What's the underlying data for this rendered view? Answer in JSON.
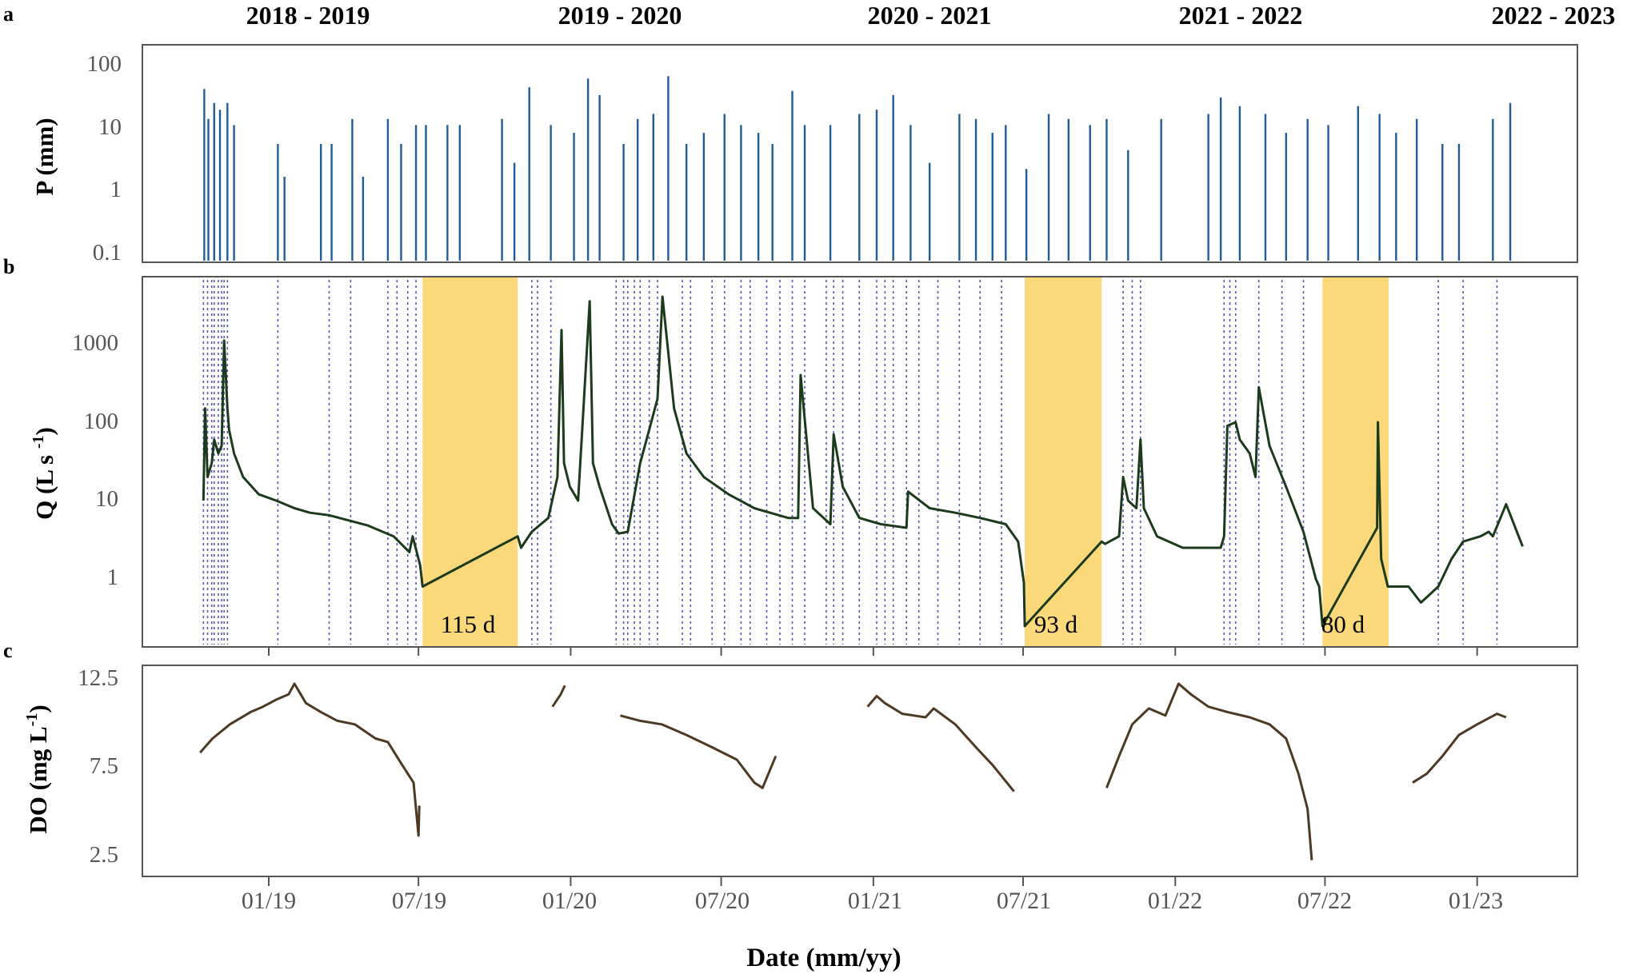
{
  "chart_data": [
    {
      "type": "bar",
      "panel": "a",
      "ylabel": "P (mm)",
      "scale": "log",
      "yticks": [
        "100",
        "10",
        "1",
        "0.1"
      ],
      "ylim": [
        0.07,
        160
      ],
      "seasons": [
        "2018 - 2019",
        "2019 - 2020",
        "2020 - 2021",
        "2021 - 2022",
        "2022 - 2023"
      ],
      "series": [
        {
          "color": "#1f5c99",
          "x": [
            "2018-10-15",
            "2018-10-20",
            "2018-10-27",
            "2018-11-03",
            "2018-11-12",
            "2018-11-20",
            "2019-01-12",
            "2019-01-20",
            "2019-03-05",
            "2019-03-18",
            "2019-04-12",
            "2019-04-25",
            "2019-05-25",
            "2019-06-10",
            "2019-06-28",
            "2019-07-10",
            "2019-08-05",
            "2019-08-20",
            "2019-10-10",
            "2019-10-25",
            "2019-11-12",
            "2019-12-08",
            "2020-01-05",
            "2020-01-22",
            "2020-02-05",
            "2020-03-05",
            "2020-03-22",
            "2020-04-10",
            "2020-04-28",
            "2020-05-20",
            "2020-06-10",
            "2020-07-05",
            "2020-07-25",
            "2020-08-15",
            "2020-09-01",
            "2020-09-25",
            "2020-10-10",
            "2020-11-10",
            "2020-12-15",
            "2021-01-05",
            "2021-01-25",
            "2021-02-15",
            "2021-03-10",
            "2021-04-15",
            "2021-05-05",
            "2021-05-25",
            "2021-06-10",
            "2021-07-05",
            "2021-08-01",
            "2021-08-25",
            "2021-09-20",
            "2021-10-10",
            "2021-11-05",
            "2021-12-15",
            "2022-02-10",
            "2022-02-25",
            "2022-03-20",
            "2022-04-20",
            "2022-05-15",
            "2022-06-10",
            "2022-07-05",
            "2022-08-10",
            "2022-09-05",
            "2022-09-25",
            "2022-10-20",
            "2022-11-20",
            "2022-12-10",
            "2023-01-20",
            "2023-02-10"
          ],
          "values": [
            75,
            25,
            45,
            35,
            45,
            20,
            10,
            3,
            10,
            10,
            25,
            3,
            25,
            10,
            20,
            20,
            20,
            20,
            25,
            5,
            80,
            20,
            15,
            110,
            60,
            10,
            25,
            30,
            120,
            10,
            15,
            30,
            20,
            15,
            10,
            70,
            20,
            20,
            30,
            35,
            60,
            20,
            5,
            30,
            25,
            15,
            20,
            4,
            30,
            25,
            20,
            25,
            8,
            25,
            30,
            55,
            40,
            30,
            15,
            25,
            20,
            40,
            30,
            15,
            25,
            10,
            10,
            25,
            45
          ]
        }
      ]
    },
    {
      "type": "line",
      "panel": "b",
      "ylabel": "Q (L s -1)",
      "ylabel_base": "Q (L s ",
      "ylabel_sup": "-1",
      "ylabel_close": ")",
      "scale": "log",
      "yticks": [
        "1000",
        "100",
        "10",
        "1"
      ],
      "ylim": [
        0.25,
        5000
      ],
      "series": [
        {
          "color": "#1c3a1c",
          "x": [
            "2018-10-14",
            "2018-10-16",
            "2018-10-19",
            "2018-10-24",
            "2018-10-27",
            "2018-11-01",
            "2018-11-05",
            "2018-11-08",
            "2018-11-12",
            "2018-11-14",
            "2018-11-20",
            "2018-12-01",
            "2018-12-20",
            "2019-01-10",
            "2019-02-01",
            "2019-02-20",
            "2019-03-15",
            "2019-04-10",
            "2019-05-01",
            "2019-06-01",
            "2019-06-20",
            "2019-06-24",
            "2019-07-03",
            "2019-07-06",
            "2019-10-29",
            "2019-11-02",
            "2019-11-15",
            "2019-12-05",
            "2019-12-16",
            "2019-12-21",
            "2019-12-24",
            "2019-12-31",
            "2020-01-10",
            "2020-01-24",
            "2020-01-28",
            "2020-02-05",
            "2020-02-20",
            "2020-02-28",
            "2020-03-10",
            "2020-03-25",
            "2020-04-05",
            "2020-04-15",
            "2020-04-21",
            "2020-05-05",
            "2020-05-20",
            "2020-06-10",
            "2020-07-10",
            "2020-08-10",
            "2020-09-20",
            "2020-10-02",
            "2020-10-05",
            "2020-10-20",
            "2020-11-10",
            "2020-11-14",
            "2020-11-25",
            "2020-12-15",
            "2021-01-10",
            "2021-02-10",
            "2021-02-12",
            "2021-03-10",
            "2021-04-10",
            "2021-05-10",
            "2021-06-10",
            "2021-06-25",
            "2021-07-02",
            "2021-07-03",
            "2021-10-04",
            "2021-10-08",
            "2021-10-25",
            "2021-10-30",
            "2021-11-05",
            "2021-11-15",
            "2021-11-20",
            "2021-11-24",
            "2021-12-10",
            "2022-01-10",
            "2022-02-10",
            "2022-02-25",
            "2022-03-01",
            "2022-03-05",
            "2022-03-15",
            "2022-03-20",
            "2022-04-01",
            "2022-04-08",
            "2022-04-12",
            "2022-04-25",
            "2022-05-15",
            "2022-06-05",
            "2022-06-20",
            "2022-06-24",
            "2022-06-28",
            "2022-09-02",
            "2022-09-03",
            "2022-09-07",
            "2022-09-15",
            "2022-10-10",
            "2022-10-25",
            "2022-11-15",
            "2022-12-01",
            "2022-12-15",
            "2023-01-05",
            "2023-01-15",
            "2023-01-20",
            "2023-02-05",
            "2023-02-25"
          ],
          "values": [
            10,
            150,
            20,
            30,
            60,
            40,
            50,
            1100,
            150,
            80,
            40,
            20,
            12,
            10,
            8,
            7,
            6.5,
            5.5,
            4.8,
            3.5,
            2.2,
            3.5,
            1.5,
            0.8,
            3.5,
            2.5,
            4,
            6,
            20,
            1500,
            30,
            15,
            10,
            3500,
            30,
            15,
            5,
            3.8,
            4,
            30,
            80,
            200,
            4000,
            150,
            40,
            20,
            12,
            8,
            6,
            6,
            400,
            8,
            5,
            70,
            15,
            6,
            5,
            4.5,
            13,
            8,
            7,
            6,
            5,
            3,
            0.9,
            0.25,
            3,
            2.8,
            3.5,
            20,
            10,
            8,
            60,
            8,
            3.5,
            2.5,
            2.5,
            2.5,
            3.5,
            90,
            100,
            60,
            40,
            20,
            280,
            50,
            15,
            4,
            1,
            0.8,
            0.25,
            4.5,
            100,
            1.8,
            0.8,
            0.8,
            0.5,
            0.8,
            1.8,
            3,
            3.5,
            4,
            3.5,
            9,
            2.6
          ]
        }
      ],
      "no_flow_periods": [
        {
          "start": "2019-07-06",
          "end": "2019-10-29",
          "label": "115 d"
        },
        {
          "start": "2021-07-03",
          "end": "2021-10-04",
          "label": "93 d"
        },
        {
          "start": "2022-06-28",
          "end": "2022-09-16",
          "label": "80 d"
        }
      ],
      "rain_event_lines": [
        "2018-10-14",
        "2018-10-19",
        "2018-10-24",
        "2018-10-27",
        "2018-11-01",
        "2018-11-05",
        "2018-11-08",
        "2018-11-12",
        "2019-01-12",
        "2019-03-15",
        "2019-04-10",
        "2019-05-25",
        "2019-06-05",
        "2019-06-18",
        "2019-06-28",
        "2019-11-15",
        "2019-11-22",
        "2019-12-08",
        "2020-02-25",
        "2020-03-05",
        "2020-03-10",
        "2020-03-18",
        "2020-03-25",
        "2020-04-05",
        "2020-04-15",
        "2020-05-15",
        "2020-05-25",
        "2020-06-20",
        "2020-07-05",
        "2020-07-25",
        "2020-08-05",
        "2020-08-25",
        "2020-09-10",
        "2020-09-25",
        "2020-10-10",
        "2020-11-05",
        "2020-11-14",
        "2020-11-25",
        "2020-12-15",
        "2021-01-05",
        "2021-01-15",
        "2021-01-25",
        "2021-02-10",
        "2021-02-25",
        "2021-03-20",
        "2021-04-15",
        "2021-05-10",
        "2021-06-05",
        "2021-10-30",
        "2021-11-10",
        "2021-11-20",
        "2022-03-01",
        "2022-03-08",
        "2022-03-15",
        "2022-04-12",
        "2022-05-10",
        "2022-06-05",
        "2022-11-15",
        "2022-12-15",
        "2023-01-25"
      ],
      "rain_line_color": "#5a56b0",
      "fill_color": "#fbd97a"
    },
    {
      "type": "line",
      "panel": "c",
      "ylabel": "DO (mg L-1)",
      "ylabel_base": "DO (mg L",
      "ylabel_sup": "-1",
      "ylabel_close": ")",
      "yticks": [
        "12.5",
        "7.5",
        "2.5"
      ],
      "ylim": [
        1.8,
        12.6
      ],
      "xlabel": "Date (mm/yy)",
      "xticks": [
        "01/19",
        "07/19",
        "01/20",
        "07/20",
        "01/21",
        "07/21",
        "01/22",
        "07/22",
        "01/23"
      ],
      "series": [
        {
          "color": "#4e3a24",
          "x": [
            "2018-10-10",
            "2018-10-25",
            "2018-11-15",
            "2018-12-10",
            "2018-12-25",
            "2019-01-10",
            "2019-01-25",
            "2019-02-01",
            "2019-02-15",
            "2019-03-05",
            "2019-03-25",
            "2019-04-15",
            "2019-05-10",
            "2019-05-25",
            "2019-06-10",
            "2019-06-25",
            "2019-07-01",
            "2019-07-02"
          ],
          "values": [
            8.2,
            9,
            9.8,
            10.5,
            10.8,
            11.2,
            11.5,
            12.1,
            11,
            10.5,
            10,
            9.8,
            9,
            8.8,
            7.6,
            6.5,
            3.5,
            5.2
          ]
        },
        {
          "color": "#4e3a24",
          "x": [
            "2019-12-10",
            "2019-12-20",
            "2019-12-25"
          ],
          "values": [
            10.8,
            11.5,
            12
          ]
        },
        {
          "color": "#4e3a24",
          "x": [
            "2020-03-01",
            "2020-03-25",
            "2020-04-20",
            "2020-05-20",
            "2020-06-20",
            "2020-07-20",
            "2020-08-10",
            "2020-08-20",
            "2020-09-05"
          ],
          "values": [
            10.3,
            10,
            9.8,
            9.2,
            8.5,
            7.8,
            6.5,
            6.2,
            8
          ]
        },
        {
          "color": "#4e3a24",
          "x": [
            "2020-12-25",
            "2021-01-05",
            "2021-01-15",
            "2021-02-05",
            "2021-03-05",
            "2021-03-15",
            "2021-04-10",
            "2021-05-05",
            "2021-05-25",
            "2021-06-20"
          ],
          "values": [
            10.8,
            11.4,
            11,
            10.4,
            10.2,
            10.7,
            9.8,
            8.5,
            7.5,
            6
          ]
        },
        {
          "color": "#4e3a24",
          "x": [
            "2021-10-10",
            "2021-10-25",
            "2021-11-10",
            "2021-11-30",
            "2021-12-20",
            "2022-01-05",
            "2022-01-20",
            "2022-02-10",
            "2022-03-05",
            "2022-04-01",
            "2022-04-25",
            "2022-05-15",
            "2022-05-30",
            "2022-06-10",
            "2022-06-15"
          ],
          "values": [
            6.2,
            8,
            9.8,
            10.7,
            10.3,
            12.1,
            11.5,
            10.8,
            10.5,
            10.2,
            9.8,
            9,
            7,
            5,
            2.1
          ]
        },
        {
          "color": "#4e3a24",
          "x": [
            "2022-10-15",
            "2022-11-01",
            "2022-11-20",
            "2022-12-10",
            "2023-01-01",
            "2023-01-25",
            "2023-02-05"
          ],
          "values": [
            6.5,
            7,
            8,
            9.2,
            9.8,
            10.4,
            10.2
          ]
        }
      ]
    }
  ]
}
